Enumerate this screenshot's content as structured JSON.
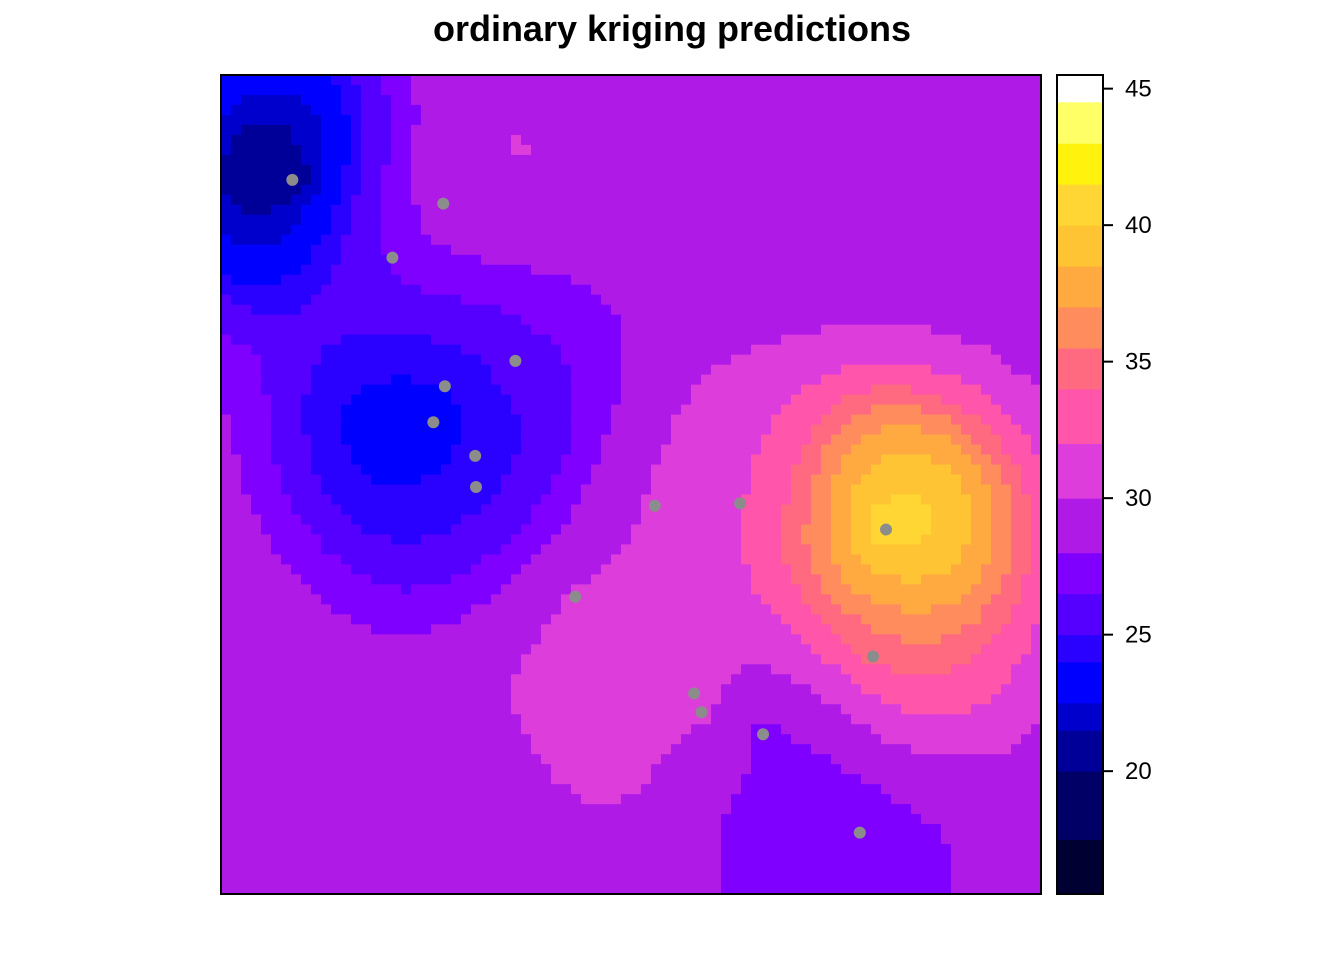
{
  "title": "ordinary kriging predictions",
  "chart_data": {
    "type": "heatmap",
    "title": "ordinary kriging predictions",
    "xlabel": "",
    "ylabel": "",
    "axes_shown": false,
    "grid": false,
    "legend": "right",
    "color_scale": {
      "breaks": [
        15,
        17.5,
        20,
        21.5,
        22.5,
        24,
        25,
        26.5,
        28,
        30,
        32,
        34,
        35.5,
        37,
        38.5,
        40,
        41.5,
        43,
        44.5,
        46
      ],
      "colors": [
        "#000033",
        "#000066",
        "#000099",
        "#0000cc",
        "#0000ff",
        "#2a00ff",
        "#5500ff",
        "#8000ff",
        "#b01ae6",
        "#dd3ddb",
        "#ff55aa",
        "#ff6a80",
        "#ff8c5c",
        "#ffaa40",
        "#ffc433",
        "#ffd633",
        "#fff20d",
        "#ffff66"
      ],
      "ticks": [
        20,
        25,
        30,
        35,
        40,
        45
      ],
      "range": [
        15.5,
        45.5
      ]
    },
    "observations": [
      {
        "x": 0.087,
        "y": 0.872,
        "value": 17.0
      },
      {
        "x": 0.271,
        "y": 0.843,
        "value": 32.0
      },
      {
        "x": 0.209,
        "y": 0.777,
        "value": 26.0
      },
      {
        "x": 0.359,
        "y": 0.651,
        "value": 28.0
      },
      {
        "x": 0.273,
        "y": 0.62,
        "value": 23.0
      },
      {
        "x": 0.259,
        "y": 0.576,
        "value": 20.0
      },
      {
        "x": 0.31,
        "y": 0.535,
        "value": 24.0
      },
      {
        "x": 0.311,
        "y": 0.497,
        "value": 25.0
      },
      {
        "x": 0.529,
        "y": 0.474,
        "value": 30.0
      },
      {
        "x": 0.633,
        "y": 0.477,
        "value": 32.0
      },
      {
        "x": 0.811,
        "y": 0.445,
        "value": 45.5
      },
      {
        "x": 0.432,
        "y": 0.363,
        "value": 31.0
      },
      {
        "x": 0.795,
        "y": 0.29,
        "value": 36.0
      },
      {
        "x": 0.577,
        "y": 0.245,
        "value": 33.0
      },
      {
        "x": 0.586,
        "y": 0.222,
        "value": 32.0
      },
      {
        "x": 0.661,
        "y": 0.195,
        "value": 22.0
      },
      {
        "x": 0.779,
        "y": 0.075,
        "value": 27.0
      }
    ],
    "background_value": 29.0
  }
}
